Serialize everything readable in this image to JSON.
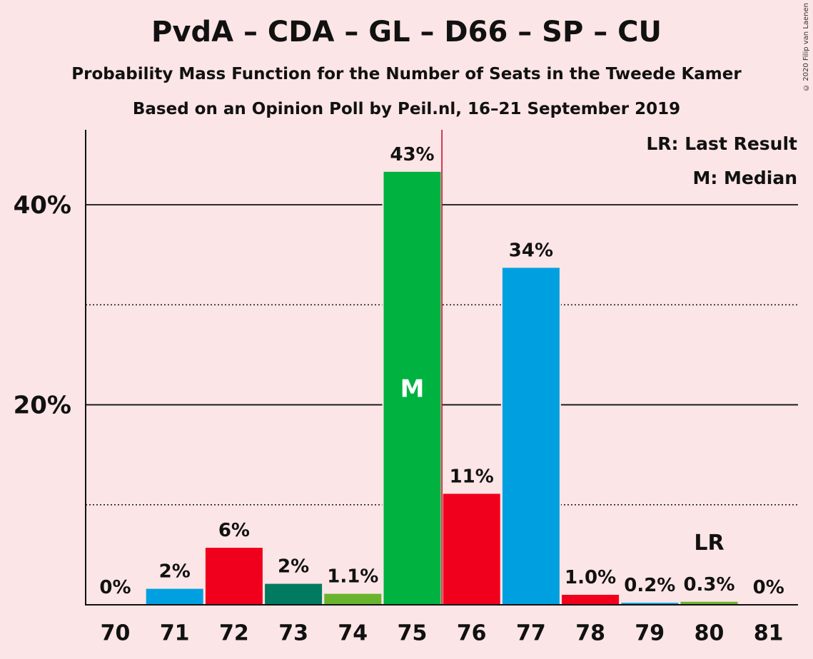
{
  "title": "PvdA – CDA – GL – D66 – SP – CU",
  "subtitle1": "Probability Mass Function for the Number of Seats in the Tweede Kamer",
  "subtitle2": "Based on an Opinion Poll by Peil.nl, 16–21 September 2019",
  "copyright": "© 2020 Filip van Laenen",
  "legend": {
    "lr": "LR: Last Result",
    "m": "M: Median"
  },
  "markers": {
    "median": "M",
    "last_result": "LR"
  },
  "chart_data": {
    "type": "bar",
    "categories": [
      "70",
      "71",
      "72",
      "73",
      "74",
      "75",
      "76",
      "77",
      "78",
      "79",
      "80",
      "81"
    ],
    "values": [
      0,
      1.6,
      5.7,
      2.1,
      1.1,
      43.3,
      11.1,
      33.7,
      1.0,
      0.2,
      0.3,
      0
    ],
    "labels": [
      "0%",
      "2%",
      "6%",
      "2%",
      "1.1%",
      "43%",
      "11%",
      "34%",
      "1.0%",
      "0.2%",
      "0.3%",
      "0%"
    ],
    "colors": [
      "#00A0E0",
      "#00A0E0",
      "#F0001C",
      "#007B5F",
      "#69B42D",
      "#00B23F",
      "#F0001C",
      "#00A0E0",
      "#F0001C",
      "#00A0E0",
      "#69B42D",
      "#69B42D"
    ],
    "ylim": [
      0,
      47.5
    ],
    "y_ticks": [
      20,
      40
    ],
    "y_tick_labels": [
      "20%",
      "40%"
    ],
    "y_minor_ticks": [
      10,
      30
    ],
    "median_seat": "75",
    "last_result_seat": "80",
    "median_line_color": "#C8001E"
  }
}
